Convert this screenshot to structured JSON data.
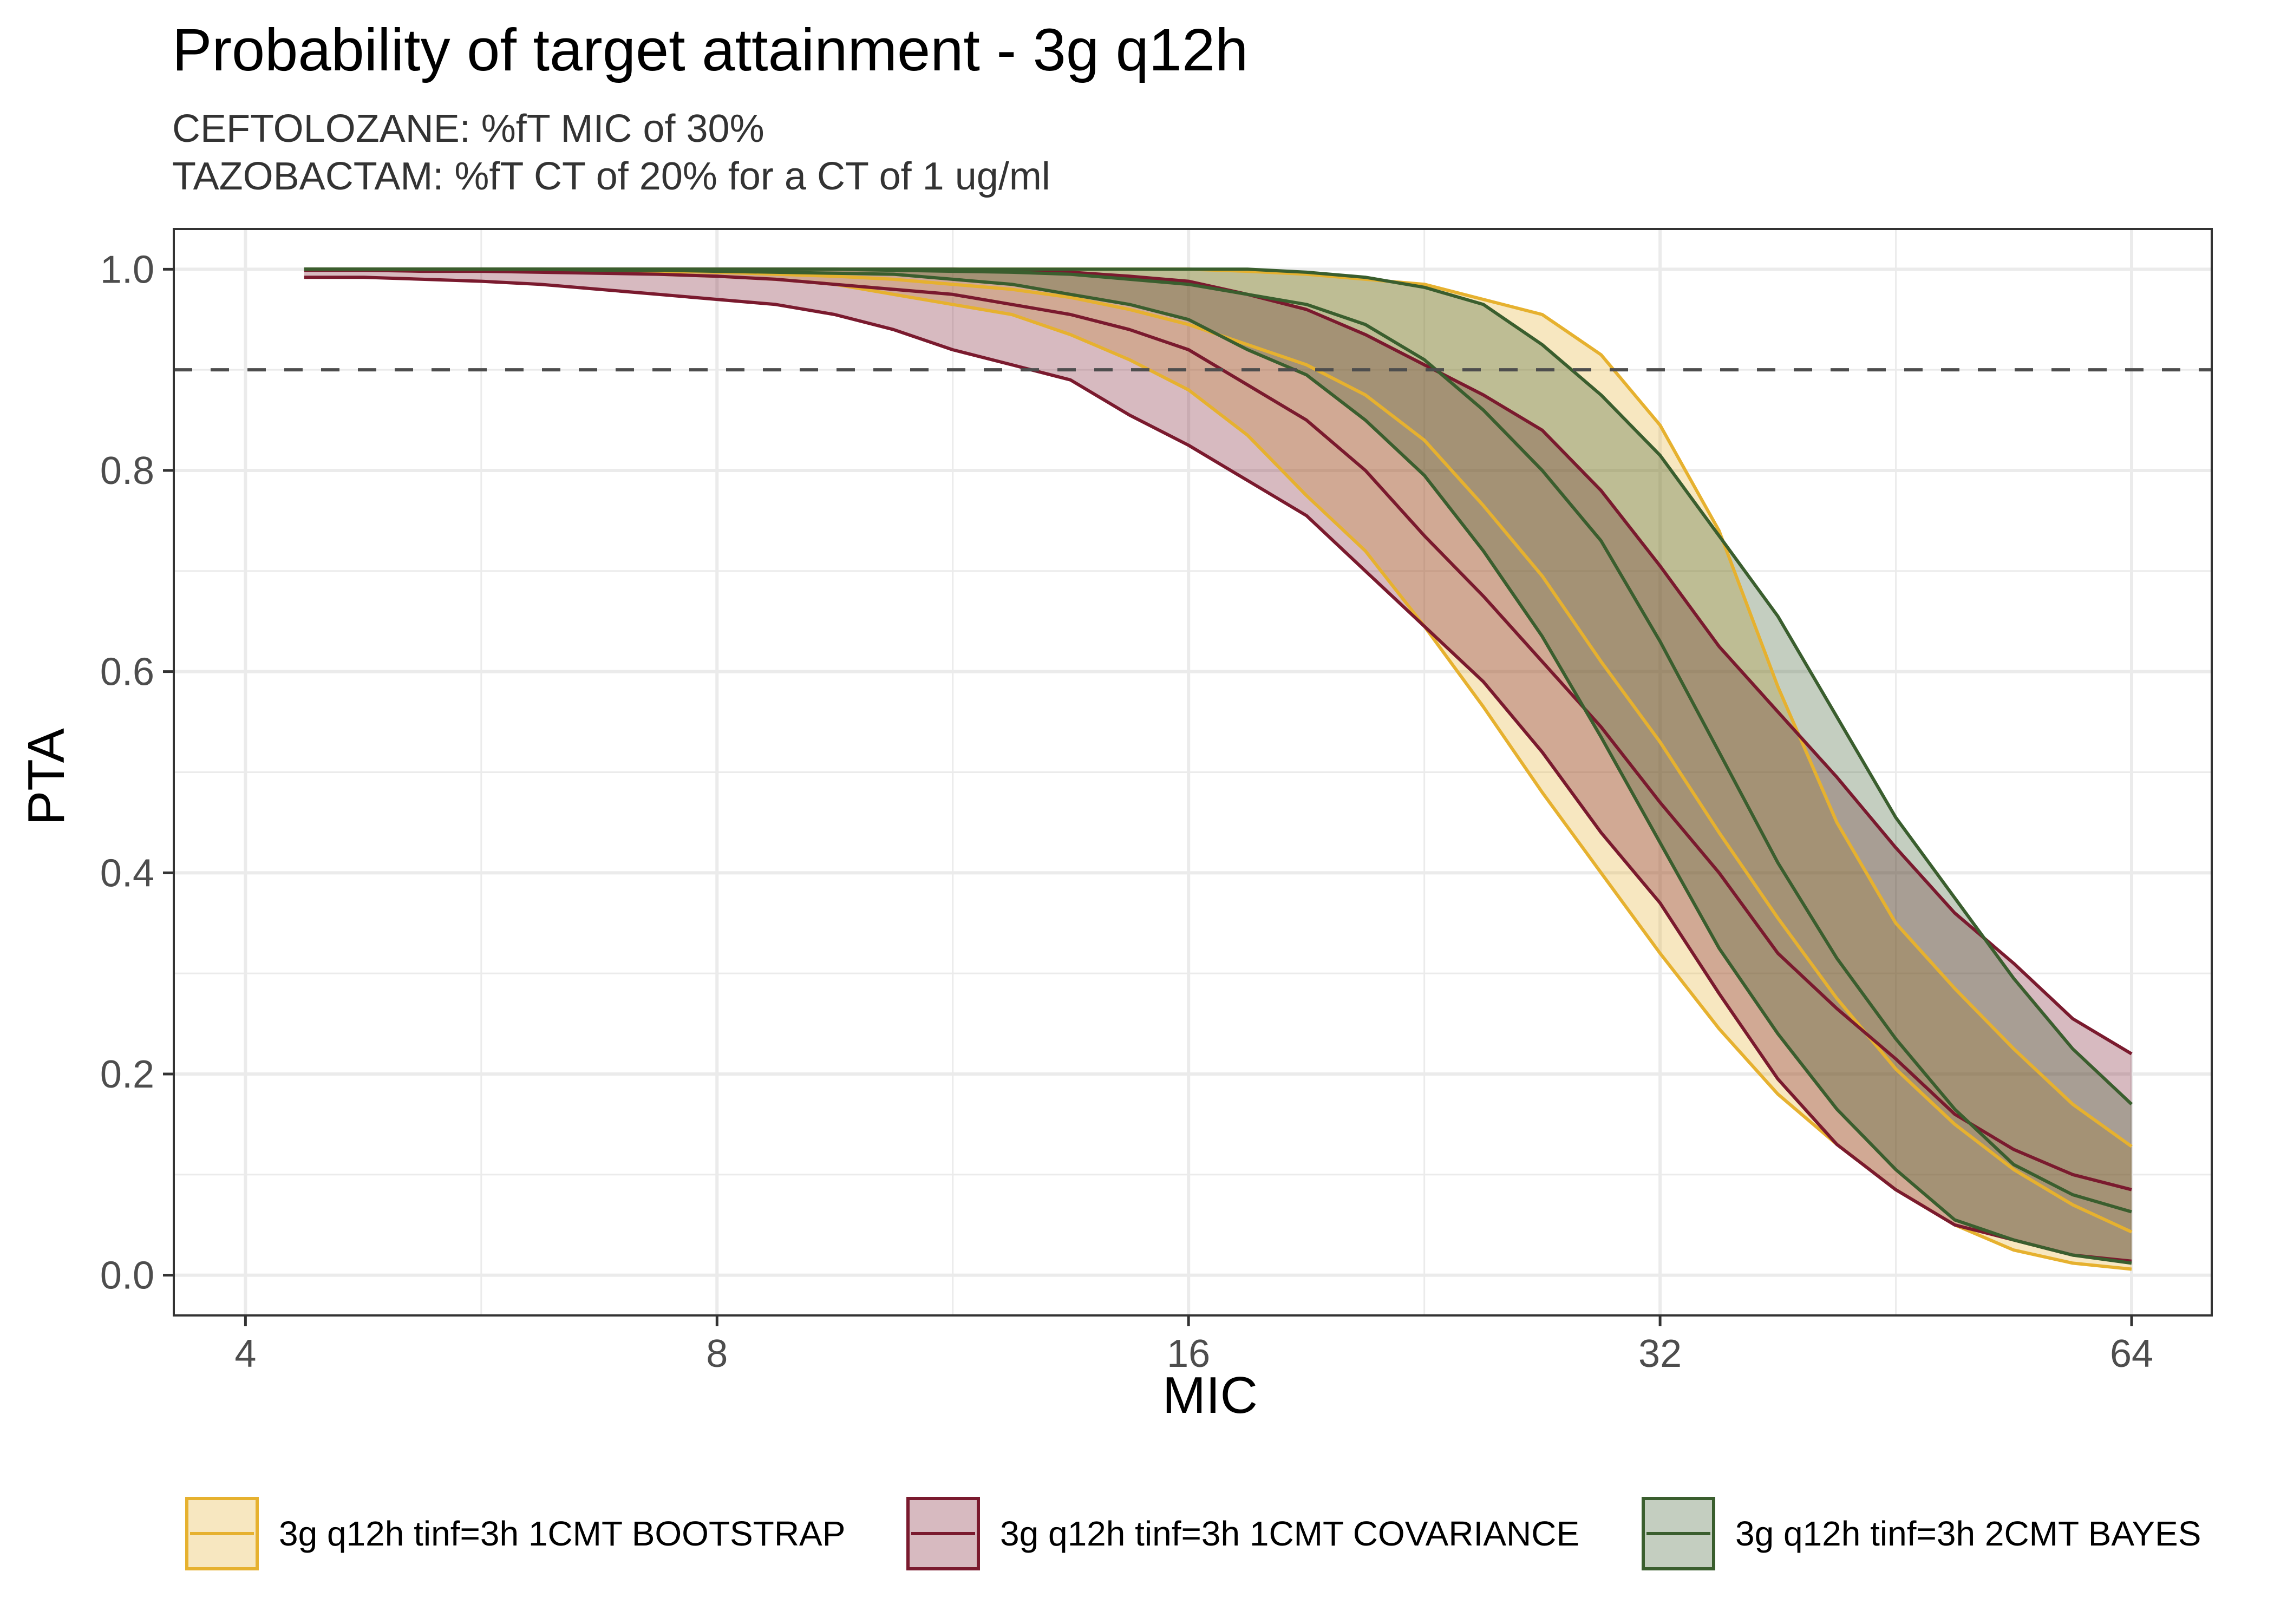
{
  "chart_data": {
    "type": "area",
    "title": "Probability of target attainment - 3g q12h",
    "subtitle_lines": [
      "CEFTOLOZANE: %fT MIC of 30%",
      "TAZOBACTAM: %fT CT of 20% for a CT of 1 ug/ml"
    ],
    "xlabel": "MIC",
    "ylabel": "PTA",
    "x_scale": "log2",
    "xlim": [
      3.6,
      72
    ],
    "ylim": [
      -0.04,
      1.04
    ],
    "x_ticks": [
      4,
      8,
      16,
      32,
      64
    ],
    "x_tick_labels": [
      "4",
      "8",
      "16",
      "32",
      "64"
    ],
    "y_ticks": [
      0.0,
      0.2,
      0.4,
      0.6,
      0.8,
      1.0
    ],
    "y_tick_labels": [
      "0.0",
      "0.2",
      "0.4",
      "0.6",
      "0.8",
      "1.0"
    ],
    "grid": true,
    "reference_line": {
      "y": 0.9,
      "style": "dashed",
      "color": "#4d4d4d"
    },
    "legend_position": "bottom",
    "x": [
      4.36,
      4.76,
      5.19,
      5.66,
      6.17,
      6.73,
      7.34,
      8.0,
      8.72,
      9.51,
      10.37,
      11.31,
      12.34,
      13.45,
      14.67,
      16.0,
      17.45,
      19.03,
      20.75,
      22.63,
      24.68,
      26.91,
      29.34,
      32.0,
      34.9,
      38.05,
      41.5,
      45.25,
      49.35,
      53.82,
      58.69,
      64.0
    ],
    "series": [
      {
        "name": "3g q12h tinf=3h 1CMT BOOTSTRAP",
        "color": "#E6B12F",
        "fill": "#F8E9C4",
        "upper": [
          1.0,
          1.0,
          1.0,
          1.0,
          1.0,
          1.0,
          1.0,
          1.0,
          1.0,
          1.0,
          1.0,
          1.0,
          1.0,
          1.0,
          1.0,
          1.0,
          0.998,
          0.995,
          0.99,
          0.985,
          0.97,
          0.955,
          0.915,
          0.845,
          0.74,
          0.585,
          0.45,
          0.35,
          0.285,
          0.225,
          0.17,
          0.128
        ],
        "median": [
          1.0,
          1.0,
          1.0,
          1.0,
          0.999,
          0.999,
          0.998,
          0.997,
          0.995,
          0.993,
          0.99,
          0.985,
          0.98,
          0.972,
          0.96,
          0.945,
          0.925,
          0.905,
          0.875,
          0.83,
          0.765,
          0.695,
          0.61,
          0.53,
          0.44,
          0.355,
          0.275,
          0.205,
          0.15,
          0.105,
          0.07,
          0.043
        ],
        "lower": [
          1.0,
          1.0,
          0.999,
          0.999,
          0.998,
          0.997,
          0.995,
          0.993,
          0.99,
          0.985,
          0.975,
          0.965,
          0.955,
          0.935,
          0.91,
          0.88,
          0.835,
          0.775,
          0.72,
          0.645,
          0.565,
          0.48,
          0.4,
          0.32,
          0.245,
          0.18,
          0.13,
          0.085,
          0.05,
          0.025,
          0.012,
          0.006
        ]
      },
      {
        "name": "3g q12h tinf=3h 1CMT COVARIANCE",
        "color": "#7A1A2E",
        "fill": "#D8BAC3",
        "upper": [
          1.0,
          1.0,
          1.0,
          1.0,
          1.0,
          1.0,
          1.0,
          1.0,
          1.0,
          1.0,
          1.0,
          1.0,
          0.999,
          0.997,
          0.993,
          0.988,
          0.975,
          0.96,
          0.935,
          0.905,
          0.875,
          0.84,
          0.78,
          0.705,
          0.625,
          0.56,
          0.495,
          0.425,
          0.36,
          0.31,
          0.255,
          0.22
        ],
        "median": [
          0.999,
          0.999,
          0.998,
          0.998,
          0.997,
          0.996,
          0.995,
          0.993,
          0.99,
          0.985,
          0.98,
          0.975,
          0.965,
          0.955,
          0.94,
          0.92,
          0.885,
          0.85,
          0.8,
          0.735,
          0.675,
          0.61,
          0.545,
          0.47,
          0.4,
          0.32,
          0.265,
          0.215,
          0.16,
          0.125,
          0.1,
          0.085
        ],
        "lower": [
          0.992,
          0.992,
          0.99,
          0.988,
          0.985,
          0.98,
          0.975,
          0.97,
          0.965,
          0.955,
          0.94,
          0.92,
          0.905,
          0.89,
          0.855,
          0.825,
          0.79,
          0.755,
          0.7,
          0.645,
          0.59,
          0.52,
          0.44,
          0.37,
          0.28,
          0.195,
          0.13,
          0.085,
          0.05,
          0.035,
          0.02,
          0.014
        ]
      },
      {
        "name": "3g q12h tinf=3h 2CMT BAYES",
        "color": "#3A5E2E",
        "fill": "#C5D0C4",
        "upper": [
          1.0,
          1.0,
          1.0,
          1.0,
          1.0,
          1.0,
          1.0,
          1.0,
          1.0,
          1.0,
          1.0,
          1.0,
          1.0,
          1.0,
          1.0,
          1.0,
          1.0,
          0.997,
          0.992,
          0.982,
          0.965,
          0.925,
          0.875,
          0.815,
          0.735,
          0.655,
          0.555,
          0.455,
          0.375,
          0.295,
          0.225,
          0.17
        ],
        "median": [
          1.0,
          1.0,
          1.0,
          1.0,
          1.0,
          1.0,
          1.0,
          1.0,
          1.0,
          1.0,
          0.999,
          0.998,
          0.997,
          0.995,
          0.99,
          0.985,
          0.975,
          0.965,
          0.945,
          0.91,
          0.86,
          0.8,
          0.73,
          0.63,
          0.52,
          0.41,
          0.315,
          0.235,
          0.165,
          0.11,
          0.08,
          0.063
        ],
        "lower": [
          1.0,
          1.0,
          1.0,
          1.0,
          1.0,
          0.999,
          0.999,
          0.998,
          0.997,
          0.996,
          0.995,
          0.99,
          0.985,
          0.975,
          0.965,
          0.95,
          0.92,
          0.895,
          0.85,
          0.795,
          0.72,
          0.635,
          0.535,
          0.43,
          0.325,
          0.24,
          0.165,
          0.105,
          0.055,
          0.035,
          0.02,
          0.012
        ]
      }
    ]
  }
}
